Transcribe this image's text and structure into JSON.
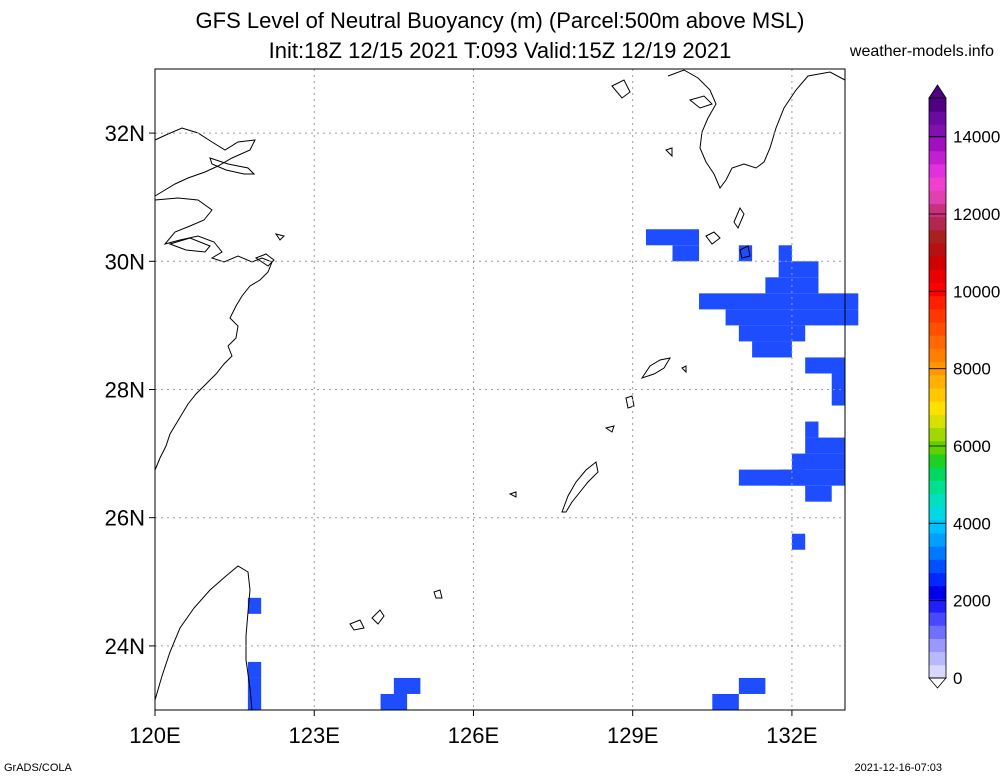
{
  "title_line1": "GFS Level of Neutral Buoyancy (m) (Parcel:500m above MSL)",
  "title_line2": "Init:18Z 12/15 2021 T:093 Valid:15Z 12/19 2021",
  "source": "weather-models.info",
  "footer_left": "GrADS/COLA",
  "footer_right": "2021-12-16-07:03",
  "map": {
    "lon_range": [
      120,
      133
    ],
    "lat_range": [
      23,
      33
    ],
    "lon_ticks": [
      {
        "value": 120,
        "label": "120E"
      },
      {
        "value": 123,
        "label": "123E"
      },
      {
        "value": 126,
        "label": "126E"
      },
      {
        "value": 129,
        "label": "129E"
      },
      {
        "value": 132,
        "label": "132E"
      }
    ],
    "lat_ticks": [
      {
        "value": 24,
        "label": "24N"
      },
      {
        "value": 26,
        "label": "26N"
      },
      {
        "value": 28,
        "label": "28N"
      },
      {
        "value": 30,
        "label": "30N"
      },
      {
        "value": 32,
        "label": "32N"
      }
    ],
    "grid": true,
    "cell_size_deg": 0.25,
    "buoyancy_color": "#1e4dff",
    "buoyancy_cells": [
      [
        129.25,
        30.25,
        1.0,
        0.25
      ],
      [
        129.75,
        30.0,
        0.5,
        0.25
      ],
      [
        131.0,
        30.0,
        0.25,
        0.25
      ],
      [
        131.75,
        30.0,
        0.25,
        0.25
      ],
      [
        131.75,
        29.75,
        0.75,
        0.25
      ],
      [
        131.5,
        29.5,
        1.0,
        0.25
      ],
      [
        130.25,
        29.25,
        3.0,
        0.25
      ],
      [
        130.75,
        29.0,
        2.5,
        0.25
      ],
      [
        131.0,
        28.75,
        1.25,
        0.25
      ],
      [
        131.25,
        28.5,
        0.75,
        0.25
      ],
      [
        132.25,
        28.25,
        0.75,
        0.25
      ],
      [
        132.75,
        28.0,
        0.25,
        0.25
      ],
      [
        132.75,
        27.75,
        0.25,
        0.25
      ],
      [
        132.25,
        27.25,
        0.25,
        0.25
      ],
      [
        132.25,
        27.0,
        0.75,
        0.25
      ],
      [
        132.0,
        26.75,
        1.0,
        0.25
      ],
      [
        131.0,
        26.5,
        2.0,
        0.25
      ],
      [
        131.75,
        26.5,
        0.5,
        0.25
      ],
      [
        132.25,
        26.25,
        0.5,
        0.25
      ],
      [
        132.0,
        25.5,
        0.25,
        0.25
      ],
      [
        121.75,
        24.5,
        0.25,
        0.25
      ],
      [
        121.75,
        23.5,
        0.25,
        0.25
      ],
      [
        121.75,
        23.0,
        0.25,
        0.5
      ],
      [
        124.5,
        23.25,
        0.5,
        0.25
      ],
      [
        124.25,
        23.0,
        0.5,
        0.25
      ],
      [
        131.0,
        23.25,
        0.5,
        0.25
      ],
      [
        130.5,
        23.0,
        0.5,
        0.25
      ]
    ]
  },
  "colorbar": {
    "min": 0,
    "max": 15000,
    "labels": [
      {
        "value": 0,
        "label": "0"
      },
      {
        "value": 2000,
        "label": "2000"
      },
      {
        "value": 4000,
        "label": "4000"
      },
      {
        "value": 6000,
        "label": "6000"
      },
      {
        "value": 8000,
        "label": "8000"
      },
      {
        "value": 10000,
        "label": "10000"
      },
      {
        "value": 12000,
        "label": "12000"
      },
      {
        "value": 14000,
        "label": "14000"
      }
    ],
    "colors": [
      "#d8d8ff",
      "#b8b8ff",
      "#9898ff",
      "#7070ff",
      "#4848ff",
      "#2020ff",
      "#0000e8",
      "#0028ff",
      "#0050ff",
      "#0078ff",
      "#00a0ff",
      "#00c0ff",
      "#00d8e8",
      "#00e0c0",
      "#00e090",
      "#00d860",
      "#20d020",
      "#60d000",
      "#a0d800",
      "#d8e000",
      "#ffe000",
      "#ffc800",
      "#ffb000",
      "#ff9800",
      "#ff8000",
      "#ff6800",
      "#ff5000",
      "#ff3800",
      "#ff2000",
      "#ff0000",
      "#e80000",
      "#d00000",
      "#b81010",
      "#a82020",
      "#b02850",
      "#c83080",
      "#e040b0",
      "#f040d0",
      "#e030e0",
      "#c020d0",
      "#a010c0",
      "#8010b0",
      "#6a0aa0",
      "#500080"
    ]
  }
}
